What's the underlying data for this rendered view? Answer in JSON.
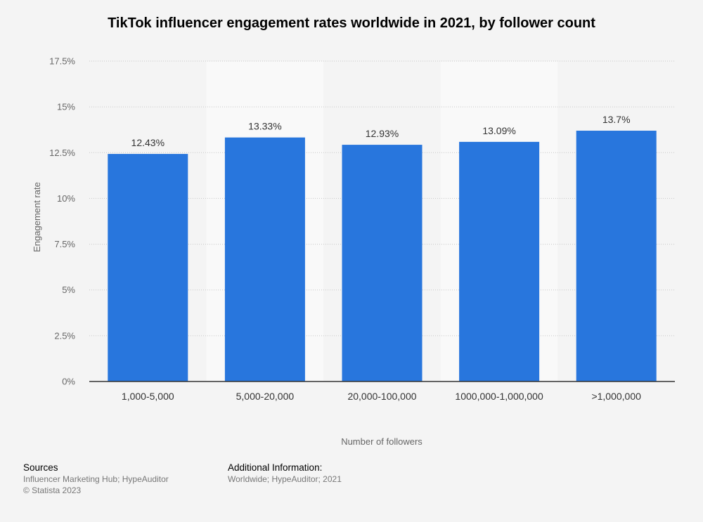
{
  "title": "TikTok influencer engagement rates worldwide in 2021, by follower count",
  "chart_data": {
    "type": "bar",
    "title": "TikTok influencer engagement rates worldwide in 2021, by follower count",
    "xlabel": "Number of followers",
    "ylabel": "Engagement rate",
    "categories": [
      "1,000-5,000",
      "5,000-20,000",
      "20,000-100,000",
      "1000,000-1,000,000",
      ">1,000,000"
    ],
    "values": [
      12.43,
      13.33,
      12.93,
      13.09,
      13.7
    ],
    "value_labels": [
      "12.43%",
      "13.33%",
      "12.93%",
      "13.09%",
      "13.7%"
    ],
    "ylim": [
      0,
      17.5
    ],
    "yticks": [
      0,
      2.5,
      5,
      7.5,
      10,
      12.5,
      15,
      17.5
    ],
    "ytick_labels": [
      "0%",
      "2.5%",
      "5%",
      "7.5%",
      "10%",
      "12.5%",
      "15%",
      "17.5%"
    ],
    "grid": true,
    "bar_color": "#2876dd"
  },
  "footer": {
    "sources_heading": "Sources",
    "sources_text": "Influencer Marketing Hub; HypeAuditor",
    "copyright": "© Statista 2023",
    "info_heading": "Additional Information:",
    "info_text": "Worldwide; HypeAuditor; 2021"
  }
}
